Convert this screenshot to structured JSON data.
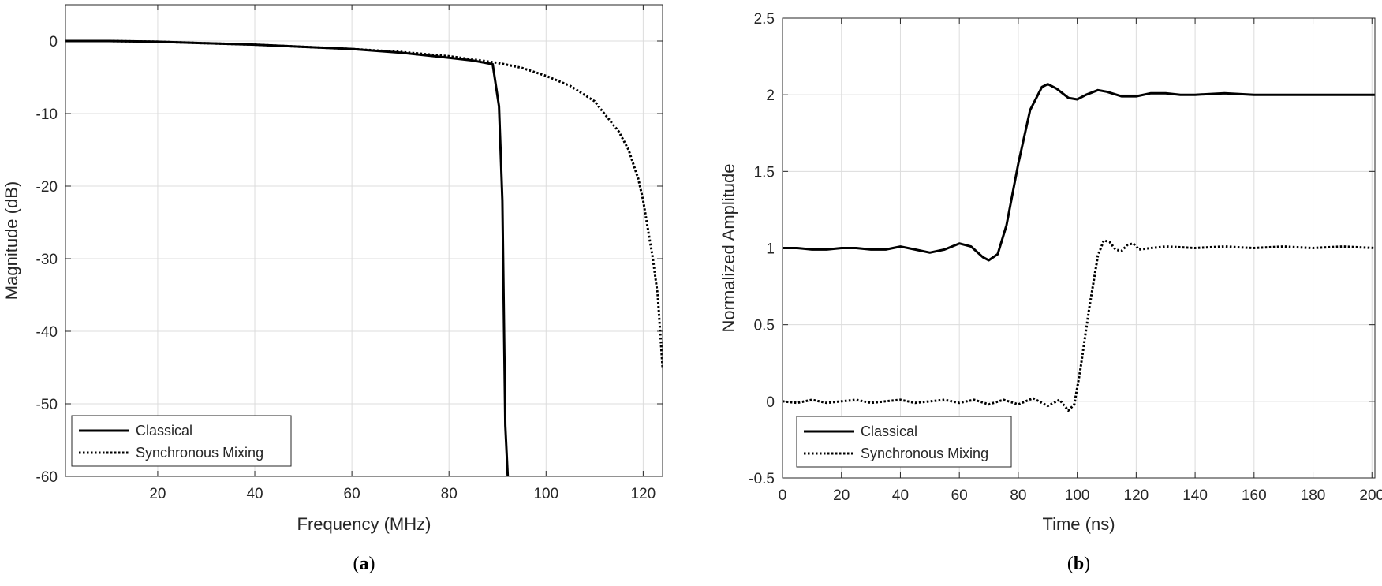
{
  "chart_data": [
    {
      "type": "line",
      "panel": "a",
      "caption_letter": "a",
      "xlabel": "Frequency (MHz)",
      "ylabel": "Magnitude (dB)",
      "xlim": [
        1,
        124
      ],
      "ylim": [
        -60,
        5
      ],
      "xticks": [
        20,
        40,
        60,
        80,
        100,
        120
      ],
      "yticks": [
        0,
        -10,
        -20,
        -30,
        -40,
        -50,
        -60
      ],
      "grid": true,
      "legend_position": "bottom-left",
      "series": [
        {
          "name": "Classical",
          "style": "solid",
          "points": [
            [
              1,
              0
            ],
            [
              10,
              0
            ],
            [
              20,
              -0.1
            ],
            [
              30,
              -0.3
            ],
            [
              40,
              -0.5
            ],
            [
              50,
              -0.8
            ],
            [
              60,
              -1.1
            ],
            [
              70,
              -1.6
            ],
            [
              80,
              -2.3
            ],
            [
              85,
              -2.7
            ],
            [
              89,
              -3.2
            ],
            [
              90.3,
              -9
            ],
            [
              91,
              -22
            ],
            [
              91.6,
              -53
            ],
            [
              92.1,
              -60
            ]
          ]
        },
        {
          "name": "Synchronous Mixing",
          "style": "dotted",
          "points": [
            [
              1,
              0
            ],
            [
              10,
              0
            ],
            [
              20,
              -0.1
            ],
            [
              30,
              -0.3
            ],
            [
              40,
              -0.5
            ],
            [
              50,
              -0.8
            ],
            [
              60,
              -1.1
            ],
            [
              70,
              -1.5
            ],
            [
              80,
              -2.1
            ],
            [
              90,
              -3.0
            ],
            [
              95,
              -3.7
            ],
            [
              100,
              -4.8
            ],
            [
              105,
              -6.2
            ],
            [
              110,
              -8.3
            ],
            [
              112,
              -10
            ],
            [
              115,
              -12.5
            ],
            [
              117,
              -15
            ],
            [
              119,
              -19
            ],
            [
              120,
              -22
            ],
            [
              121,
              -26
            ],
            [
              122,
              -30
            ],
            [
              123,
              -35
            ],
            [
              124,
              -45
            ]
          ]
        }
      ]
    },
    {
      "type": "line",
      "panel": "b",
      "caption_letter": "b",
      "xlabel": "Time (ns)",
      "ylabel": "Normalized Amplitude",
      "xlim": [
        0,
        201
      ],
      "ylim": [
        -0.5,
        2.5
      ],
      "xticks": [
        0,
        20,
        40,
        60,
        80,
        100,
        120,
        140,
        160,
        180,
        200
      ],
      "yticks": [
        -0.5,
        0,
        0.5,
        1,
        1.5,
        2,
        2.5
      ],
      "grid": true,
      "legend_position": "bottom-left",
      "series": [
        {
          "name": "Classical",
          "style": "solid",
          "points": [
            [
              0,
              1
            ],
            [
              5,
              1
            ],
            [
              10,
              0.99
            ],
            [
              15,
              0.99
            ],
            [
              20,
              1
            ],
            [
              25,
              1
            ],
            [
              30,
              0.99
            ],
            [
              35,
              0.99
            ],
            [
              40,
              1.01
            ],
            [
              45,
              0.99
            ],
            [
              50,
              0.97
            ],
            [
              55,
              0.99
            ],
            [
              60,
              1.03
            ],
            [
              64,
              1.01
            ],
            [
              68,
              0.94
            ],
            [
              70,
              0.92
            ],
            [
              73,
              0.96
            ],
            [
              76,
              1.15
            ],
            [
              80,
              1.55
            ],
            [
              84,
              1.9
            ],
            [
              88,
              2.05
            ],
            [
              90,
              2.07
            ],
            [
              93,
              2.04
            ],
            [
              97,
              1.98
            ],
            [
              100,
              1.97
            ],
            [
              103,
              2
            ],
            [
              107,
              2.03
            ],
            [
              110,
              2.02
            ],
            [
              115,
              1.99
            ],
            [
              120,
              1.99
            ],
            [
              125,
              2.01
            ],
            [
              130,
              2.01
            ],
            [
              135,
              2
            ],
            [
              140,
              2
            ],
            [
              150,
              2.01
            ],
            [
              160,
              2
            ],
            [
              170,
              2
            ],
            [
              180,
              2
            ],
            [
              190,
              2
            ],
            [
              201,
              2
            ]
          ]
        },
        {
          "name": "Synchronous Mixing",
          "style": "dotted",
          "points": [
            [
              0,
              0
            ],
            [
              5,
              -0.01
            ],
            [
              10,
              0.01
            ],
            [
              15,
              -0.01
            ],
            [
              20,
              0
            ],
            [
              25,
              0.01
            ],
            [
              30,
              -0.01
            ],
            [
              35,
              0
            ],
            [
              40,
              0.01
            ],
            [
              45,
              -0.01
            ],
            [
              50,
              0
            ],
            [
              55,
              0.01
            ],
            [
              60,
              -0.01
            ],
            [
              65,
              0.01
            ],
            [
              70,
              -0.02
            ],
            [
              75,
              0.01
            ],
            [
              80,
              -0.02
            ],
            [
              85,
              0.02
            ],
            [
              90,
              -0.03
            ],
            [
              94,
              0.01
            ],
            [
              97,
              -0.06
            ],
            [
              99,
              -0.02
            ],
            [
              101,
              0.2
            ],
            [
              104,
              0.6
            ],
            [
              107,
              0.95
            ],
            [
              109,
              1.05
            ],
            [
              111,
              1.04
            ],
            [
              113,
              0.99
            ],
            [
              115,
              0.98
            ],
            [
              117,
              1.02
            ],
            [
              119,
              1.03
            ],
            [
              121,
              0.99
            ],
            [
              125,
              1
            ],
            [
              130,
              1.01
            ],
            [
              140,
              1
            ],
            [
              150,
              1.01
            ],
            [
              160,
              1
            ],
            [
              170,
              1.01
            ],
            [
              180,
              1
            ],
            [
              190,
              1.01
            ],
            [
              201,
              1
            ]
          ]
        }
      ]
    }
  ]
}
